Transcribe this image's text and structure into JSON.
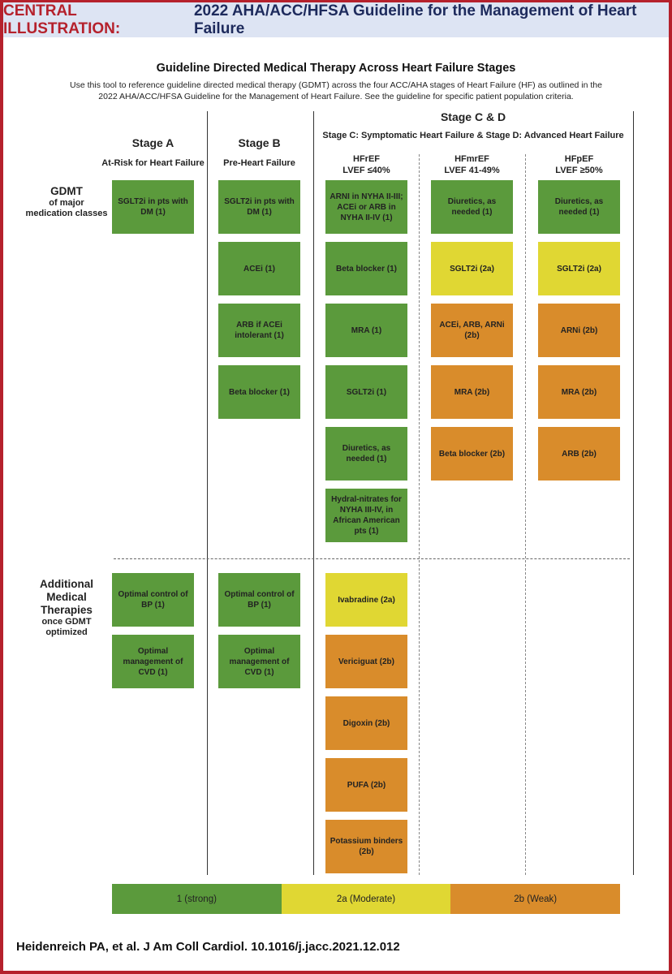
{
  "header": {
    "label": "CENTRAL ILLUSTRATION:",
    "title": "2022 AHA/ACC/HFSA Guideline for the Management of Heart Failure"
  },
  "title": "Guideline Directed Medical Therapy Across Heart Failure Stages",
  "description": "Use this tool to reference guideline directed medical therapy (GDMT) across the four ACC/AHA stages of Heart Failure (HF) as outlined in the 2022 AHA/ACC/HFSA Guideline for the Management of Heart Failure. See the guideline for specific patient population criteria.",
  "colors": {
    "1": "#5b9a3c",
    "2a": "#e0d733",
    "2b": "#d98c2b",
    "frame": "#b5212c",
    "header_bg": "#dde4f3"
  },
  "stage_cd": {
    "title": "Stage C & D",
    "subtitle": "Stage C: Symptomatic Heart Failure & Stage D: Advanced Heart Failure"
  },
  "row_labels": {
    "gdmt": {
      "big": "GDMT",
      "small": "of major medication classes"
    },
    "additional": {
      "big": "Additional Medical Therapies",
      "small": "once GDMT optimized"
    }
  },
  "columns": [
    {
      "title": "Stage A",
      "subtitle": "At-Risk for Heart Failure",
      "gdmt": [
        {
          "text": "SGLT2i in pts with DM (1)",
          "level": "1"
        }
      ],
      "additional": [
        {
          "text": "Optimal control of BP (1)",
          "level": "1"
        },
        {
          "text": "Optimal management of CVD (1)",
          "level": "1"
        }
      ]
    },
    {
      "title": "Stage B",
      "subtitle": "Pre-Heart Failure",
      "gdmt": [
        {
          "text": "SGLT2i in pts with DM (1)",
          "level": "1"
        },
        {
          "text": "ACEi (1)",
          "level": "1"
        },
        {
          "text": "ARB if ACEi intolerant (1)",
          "level": "1"
        },
        {
          "text": "Beta blocker (1)",
          "level": "1"
        }
      ],
      "additional": [
        {
          "text": "Optimal control of BP (1)",
          "level": "1"
        },
        {
          "text": "Optimal management of CVD (1)",
          "level": "1"
        }
      ]
    },
    {
      "title": "HFrEF",
      "subtitle": "LVEF ≤40%",
      "gdmt": [
        {
          "text": "ARNI in NYHA II-III; ACEi or ARB in NYHA II-IV (1)",
          "level": "1"
        },
        {
          "text": "Beta blocker (1)",
          "level": "1"
        },
        {
          "text": "MRA (1)",
          "level": "1"
        },
        {
          "text": "SGLT2i (1)",
          "level": "1"
        },
        {
          "text": "Diuretics, as needed (1)",
          "level": "1"
        },
        {
          "text": "Hydral-nitrates for NYHA III-IV, in African American pts (1)",
          "level": "1"
        }
      ],
      "additional": [
        {
          "text": "Ivabradine (2a)",
          "level": "2a"
        },
        {
          "text": "Vericiguat (2b)",
          "level": "2b"
        },
        {
          "text": "Digoxin (2b)",
          "level": "2b"
        },
        {
          "text": "PUFA (2b)",
          "level": "2b"
        },
        {
          "text": "Potassium binders (2b)",
          "level": "2b"
        }
      ]
    },
    {
      "title": "HFmrEF",
      "subtitle": "LVEF 41-49%",
      "gdmt": [
        {
          "text": "Diuretics, as needed (1)",
          "level": "1"
        },
        {
          "text": "SGLT2i (2a)",
          "level": "2a"
        },
        {
          "text": "ACEi, ARB, ARNi (2b)",
          "level": "2b"
        },
        {
          "text": "MRA (2b)",
          "level": "2b"
        },
        {
          "text": "Beta blocker (2b)",
          "level": "2b"
        }
      ],
      "additional": []
    },
    {
      "title": "HFpEF",
      "subtitle": "LVEF ≥50%",
      "gdmt": [
        {
          "text": "Diuretics, as needed (1)",
          "level": "1"
        },
        {
          "text": "SGLT2i (2a)",
          "level": "2a"
        },
        {
          "text": "ARNi (2b)",
          "level": "2b"
        },
        {
          "text": "MRA (2b)",
          "level": "2b"
        },
        {
          "text": "ARB (2b)",
          "level": "2b"
        }
      ],
      "additional": []
    }
  ],
  "legend": [
    {
      "label": "1 (strong)",
      "level": "1"
    },
    {
      "label": "2a (Moderate)",
      "level": "2a"
    },
    {
      "label": "2b (Weak)",
      "level": "2b"
    }
  ],
  "citation": "Heidenreich PA, et al. J Am Coll Cardiol. 10.1016/j.jacc.2021.12.012"
}
